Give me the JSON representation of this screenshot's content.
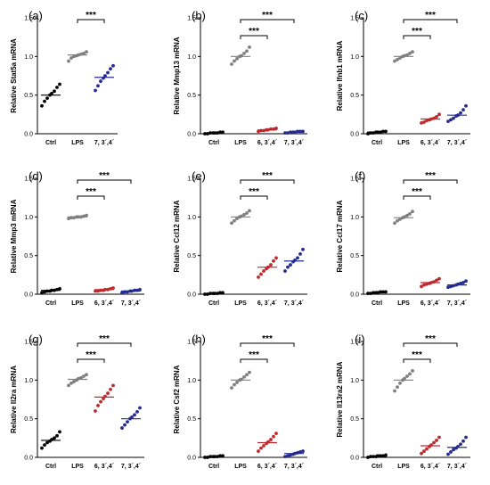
{
  "colors": {
    "Ctrl": "#000000",
    "LPS": "#7f7f7f",
    "6,3',4'": "#c0282d",
    "7,3',4'": "#252a8f"
  },
  "chart_data": [
    {
      "panel": "(a)",
      "type": "scatter",
      "ylabel": "Relative Stat5a  mRNA",
      "ylim": [
        0,
        1.5
      ],
      "yticks": [
        "0.0",
        "0.5",
        "1.0",
        "1.5"
      ],
      "categories": [
        "Ctrl",
        "LPS",
        "7, 3´,4´"
      ],
      "points": [
        [
          0.36,
          0.42,
          0.46,
          0.5,
          0.52,
          0.55,
          0.6,
          0.64
        ],
        [
          0.94,
          0.98,
          1.0,
          1.01,
          1.02,
          1.03,
          1.04,
          1.06
        ],
        [
          0.56,
          0.62,
          0.68,
          0.72,
          0.75,
          0.79,
          0.84,
          0.88
        ]
      ],
      "medians": [
        0.5,
        1.02,
        0.73
      ],
      "brackets": [
        {
          "from": 1,
          "to": 2,
          "label": "***"
        }
      ]
    },
    {
      "panel": "(b)",
      "type": "scatter",
      "ylabel": "Relative Mmp13 mRNA",
      "ylim": [
        0,
        1.5
      ],
      "yticks": [
        "0.0",
        "0.5",
        "1.0",
        "1.5"
      ],
      "categories": [
        "Ctrl",
        "LPS",
        "6, 3´,4´",
        "7, 3´,4´"
      ],
      "points": [
        [
          0.0,
          0.0,
          0.01,
          0.01,
          0.01,
          0.01,
          0.02,
          0.02
        ],
        [
          0.9,
          0.94,
          0.97,
          1.0,
          1.01,
          1.04,
          1.07,
          1.12
        ],
        [
          0.03,
          0.04,
          0.04,
          0.05,
          0.05,
          0.06,
          0.06,
          0.07
        ],
        [
          0.01,
          0.01,
          0.02,
          0.02,
          0.02,
          0.03,
          0.03,
          0.03
        ]
      ],
      "medians": [
        0.01,
        1.0,
        0.05,
        0.02
      ],
      "brackets": [
        {
          "from": 1,
          "to": 2,
          "label": "***"
        },
        {
          "from": 1,
          "to": 3,
          "label": "***"
        }
      ]
    },
    {
      "panel": "(c)",
      "type": "scatter",
      "ylabel": "Relative Ifnb1 mRNA",
      "ylim": [
        0,
        1.5
      ],
      "yticks": [
        "0.0",
        "0.5",
        "1.0",
        "1.5"
      ],
      "categories": [
        "Ctrl",
        "LPS",
        "6, 3´,4´",
        "7, 3´,4´"
      ],
      "points": [
        [
          0.0,
          0.01,
          0.01,
          0.02,
          0.02,
          0.02,
          0.03,
          0.03
        ],
        [
          0.94,
          0.96,
          0.98,
          1.0,
          1.01,
          1.02,
          1.04,
          1.06
        ],
        [
          0.14,
          0.15,
          0.17,
          0.18,
          0.19,
          0.2,
          0.22,
          0.25
        ],
        [
          0.16,
          0.18,
          0.2,
          0.23,
          0.24,
          0.27,
          0.31,
          0.36
        ]
      ],
      "medians": [
        0.02,
        1.0,
        0.19,
        0.24
      ],
      "brackets": [
        {
          "from": 1,
          "to": 2,
          "label": "***"
        },
        {
          "from": 1,
          "to": 3,
          "label": "***"
        }
      ]
    },
    {
      "panel": "(d)",
      "type": "scatter",
      "ylabel": "Relative Mmp3 mRNA",
      "ylim": [
        0,
        1.5
      ],
      "yticks": [
        "0.0",
        "0.5",
        "1.0",
        "1.5"
      ],
      "categories": [
        "Ctrl",
        "LPS",
        "6, 3´,4´",
        "7, 3´,4´"
      ],
      "points": [
        [
          0.02,
          0.03,
          0.04,
          0.04,
          0.05,
          0.05,
          0.06,
          0.07
        ],
        [
          0.98,
          0.99,
          0.99,
          1.0,
          1.0,
          1.0,
          1.01,
          1.02
        ],
        [
          0.04,
          0.04,
          0.05,
          0.05,
          0.06,
          0.06,
          0.07,
          0.08
        ],
        [
          0.02,
          0.03,
          0.03,
          0.04,
          0.04,
          0.05,
          0.05,
          0.06
        ]
      ],
      "medians": [
        0.05,
        1.0,
        0.06,
        0.04
      ],
      "brackets": [
        {
          "from": 1,
          "to": 2,
          "label": "***"
        },
        {
          "from": 1,
          "to": 3,
          "label": "***"
        }
      ]
    },
    {
      "panel": "(e)",
      "type": "scatter",
      "ylabel": "Relative Ccl12 mRNA",
      "ylim": [
        0,
        1.5
      ],
      "yticks": [
        "0.0",
        "0.5",
        "1.0",
        "1.5"
      ],
      "categories": [
        "Ctrl",
        "LPS",
        "6, 3´,4´",
        "7, 3´,4´"
      ],
      "points": [
        [
          0.0,
          0.0,
          0.01,
          0.01,
          0.01,
          0.01,
          0.02,
          0.02
        ],
        [
          0.92,
          0.95,
          0.98,
          1.0,
          1.01,
          1.03,
          1.05,
          1.08
        ],
        [
          0.22,
          0.26,
          0.3,
          0.33,
          0.35,
          0.38,
          0.43,
          0.47
        ],
        [
          0.3,
          0.35,
          0.38,
          0.42,
          0.44,
          0.47,
          0.52,
          0.58
        ]
      ],
      "medians": [
        0.01,
        1.0,
        0.35,
        0.43
      ],
      "brackets": [
        {
          "from": 1,
          "to": 2,
          "label": "***"
        },
        {
          "from": 1,
          "to": 3,
          "label": "***"
        }
      ]
    },
    {
      "panel": "(f)",
      "type": "scatter",
      "ylabel": "Relative Ccl17 mRNA",
      "ylim": [
        0,
        1.5
      ],
      "yticks": [
        "0.0",
        "0.5",
        "1.0",
        "1.5"
      ],
      "categories": [
        "Ctrl",
        "LPS",
        "6, 3´,4´",
        "7, 3´,4´"
      ],
      "points": [
        [
          0.01,
          0.01,
          0.02,
          0.02,
          0.02,
          0.03,
          0.03,
          0.03
        ],
        [
          0.92,
          0.95,
          0.97,
          0.99,
          1.0,
          1.02,
          1.04,
          1.07
        ],
        [
          0.1,
          0.12,
          0.13,
          0.14,
          0.15,
          0.16,
          0.18,
          0.2
        ],
        [
          0.09,
          0.1,
          0.11,
          0.12,
          0.13,
          0.14,
          0.15,
          0.17
        ]
      ],
      "medians": [
        0.02,
        0.99,
        0.15,
        0.12
      ],
      "brackets": [
        {
          "from": 1,
          "to": 2,
          "label": "***"
        },
        {
          "from": 1,
          "to": 3,
          "label": "***"
        }
      ]
    },
    {
      "panel": "(g)",
      "type": "scatter",
      "ylabel": "Relative Il2ra mRNA",
      "ylim": [
        0,
        1.5
      ],
      "yticks": [
        "0.0",
        "0.5",
        "1.0",
        "1.5"
      ],
      "categories": [
        "Ctrl",
        "LPS",
        "6, 3´,4´",
        "7, 3´,4´"
      ],
      "points": [
        [
          0.12,
          0.16,
          0.19,
          0.21,
          0.23,
          0.25,
          0.28,
          0.33
        ],
        [
          0.93,
          0.96,
          0.98,
          1.0,
          1.02,
          1.03,
          1.05,
          1.07
        ],
        [
          0.6,
          0.67,
          0.72,
          0.76,
          0.79,
          0.83,
          0.88,
          0.93
        ],
        [
          0.38,
          0.42,
          0.46,
          0.5,
          0.52,
          0.55,
          0.59,
          0.64
        ]
      ],
      "medians": [
        0.22,
        1.01,
        0.78,
        0.5
      ],
      "brackets": [
        {
          "from": 1,
          "to": 2,
          "label": "***"
        },
        {
          "from": 1,
          "to": 3,
          "label": "***"
        }
      ]
    },
    {
      "panel": "(h)",
      "type": "scatter",
      "ylabel": "Relative Csf2 mRNA",
      "ylim": [
        0,
        1.5
      ],
      "yticks": [
        "0.0",
        "0.5",
        "1.0",
        "1.5"
      ],
      "categories": [
        "Ctrl",
        "LPS",
        "6, 3´,4´",
        "7, 3´,4´"
      ],
      "points": [
        [
          0.0,
          0.0,
          0.01,
          0.01,
          0.01,
          0.01,
          0.02,
          0.02
        ],
        [
          0.9,
          0.94,
          0.97,
          1.0,
          1.01,
          1.04,
          1.07,
          1.1
        ],
        [
          0.08,
          0.12,
          0.15,
          0.18,
          0.2,
          0.23,
          0.27,
          0.31
        ],
        [
          0.01,
          0.02,
          0.03,
          0.04,
          0.05,
          0.06,
          0.07,
          0.08
        ]
      ],
      "medians": [
        0.01,
        1.0,
        0.19,
        0.05
      ],
      "brackets": [
        {
          "from": 1,
          "to": 2,
          "label": "***"
        },
        {
          "from": 1,
          "to": 3,
          "label": "***"
        }
      ]
    },
    {
      "panel": "(i)",
      "type": "scatter",
      "ylabel": "Relative Il13ra2 mRNA",
      "ylim": [
        0,
        1.5
      ],
      "yticks": [
        "0.0",
        "0.5",
        "1.0",
        "1.5"
      ],
      "categories": [
        "Ctrl",
        "LPS",
        "6, 3´,4´",
        "7, 3´,4´"
      ],
      "points": [
        [
          0.0,
          0.01,
          0.01,
          0.01,
          0.02,
          0.02,
          0.02,
          0.03
        ],
        [
          0.86,
          0.91,
          0.96,
          1.0,
          1.02,
          1.05,
          1.08,
          1.12
        ],
        [
          0.05,
          0.08,
          0.11,
          0.14,
          0.16,
          0.19,
          0.22,
          0.26
        ],
        [
          0.04,
          0.07,
          0.1,
          0.12,
          0.14,
          0.17,
          0.21,
          0.26
        ]
      ],
      "medians": [
        0.01,
        1.0,
        0.15,
        0.13
      ],
      "brackets": [
        {
          "from": 1,
          "to": 2,
          "label": "***"
        },
        {
          "from": 1,
          "to": 3,
          "label": "***"
        }
      ]
    }
  ]
}
